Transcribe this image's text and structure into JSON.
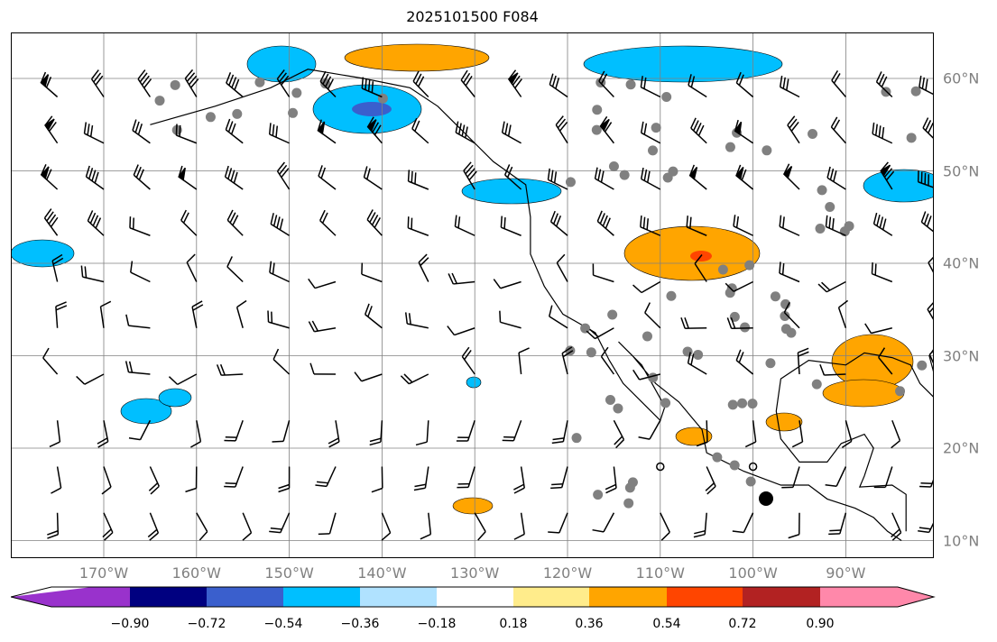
{
  "title": "2025101500 F084",
  "lon_labels": [
    "170°W",
    "160°W",
    "150°W",
    "140°W",
    "130°W",
    "120°W",
    "110°W",
    "100°W",
    "90°W"
  ],
  "lat_labels": [
    "60°N",
    "50°N",
    "40°N",
    "30°N",
    "20°N",
    "10°N"
  ],
  "colorbar": {
    "ticks": [
      "−0.90",
      "−0.72",
      "−0.54",
      "−0.36",
      "−0.18",
      "0.18",
      "0.36",
      "0.54",
      "0.72",
      "0.90"
    ],
    "colors": [
      "#9932CC",
      "#000080",
      "#3A5FCD",
      "#00BFFF",
      "#B0E2FF",
      "#FFFFFF",
      "#FFEC8B",
      "#FFA500",
      "#FF4500",
      "#B22222",
      "#FF88AA"
    ]
  }
}
